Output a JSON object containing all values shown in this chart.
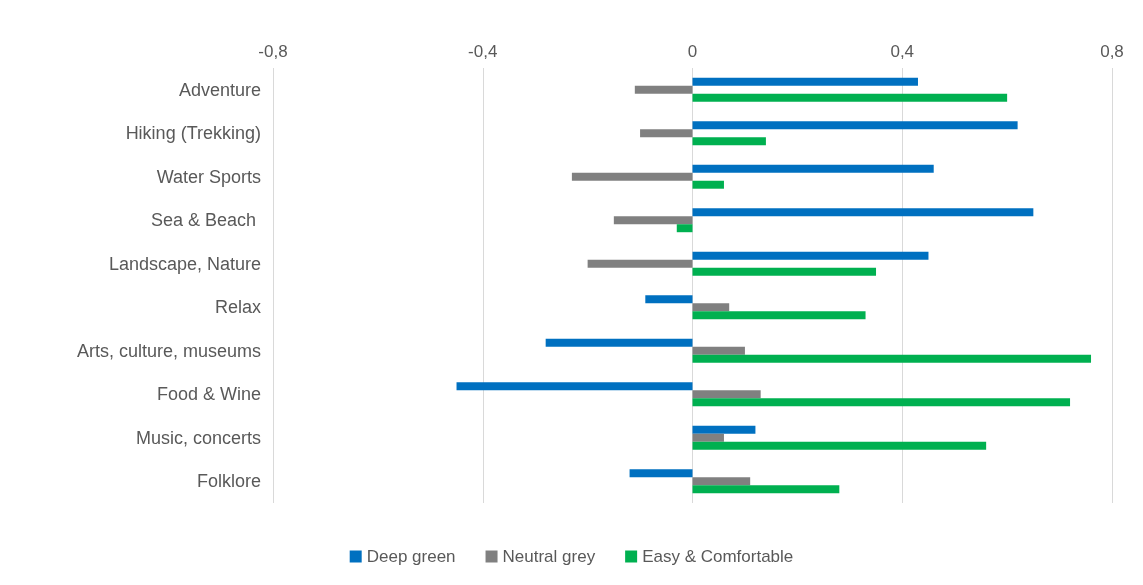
{
  "chart_data": {
    "type": "bar",
    "orientation": "horizontal",
    "categories": [
      "Adventure",
      "Hiking (Trekking)",
      "Water Sports",
      "Sea & Beach ",
      "Landscape, Nature",
      "Relax",
      "Arts, culture, museums",
      "Food & Wine",
      "Music, concerts",
      "Folklore"
    ],
    "series": [
      {
        "name": "Deep green",
        "color": "#0070c0",
        "values": [
          0.43,
          0.62,
          0.46,
          0.65,
          0.45,
          -0.09,
          -0.28,
          -0.45,
          0.12,
          -0.12
        ]
      },
      {
        "name": "Neutral grey",
        "color": "#808080",
        "values": [
          -0.11,
          -0.1,
          -0.23,
          -0.15,
          -0.2,
          0.07,
          0.1,
          0.13,
          0.06,
          0.11
        ]
      },
      {
        "name": "Easy & Comfortable",
        "color": "#00b050",
        "values": [
          0.6,
          0.14,
          0.06,
          -0.03,
          0.35,
          0.33,
          0.76,
          0.72,
          0.56,
          0.28
        ]
      }
    ],
    "xlim": [
      -0.8,
      0.8
    ],
    "xticks": [
      {
        "value": -0.8,
        "label": "-0,8"
      },
      {
        "value": -0.4,
        "label": "-0,4"
      },
      0,
      {
        "value": 0.4,
        "label": "0,4"
      },
      {
        "value": 0.8,
        "label": "0,8"
      }
    ],
    "grid": "x",
    "legend": "bottom"
  }
}
